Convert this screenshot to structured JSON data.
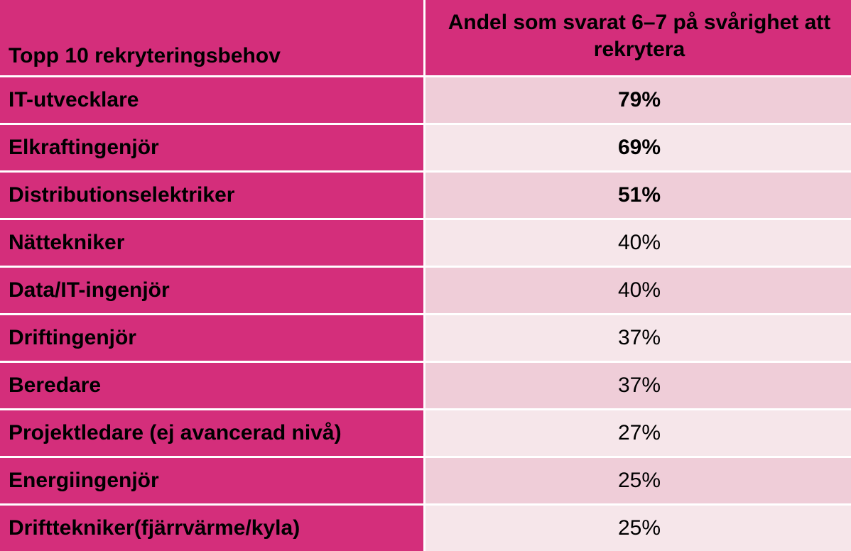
{
  "header": {
    "col1": "Topp 10 rekryteringsbehov",
    "col2": "Andel som svarat 6–7 på svårighet att rekrytera"
  },
  "rows": [
    {
      "label": "IT-utvecklare",
      "value": "79%",
      "bold": true
    },
    {
      "label": "Elkraftingenjör",
      "value": "69%",
      "bold": true
    },
    {
      "label": "Distributionselektriker",
      "value": "51%",
      "bold": true
    },
    {
      "label": "Nättekniker",
      "value": "40%",
      "bold": false
    },
    {
      "label": "Data/IT-ingenjör",
      "value": "40%",
      "bold": false
    },
    {
      "label": "Driftingenjör",
      "value": "37%",
      "bold": false
    },
    {
      "label": "Beredare",
      "value": "37%",
      "bold": false
    },
    {
      "label": "Projektledare (ej avancerad nivå)",
      "value": "27%",
      "bold": false
    },
    {
      "label": "Energiingenjör",
      "value": "25%",
      "bold": false
    },
    {
      "label": "Drifttekniker(fjärrvärme/kyla)",
      "value": "25%",
      "bold": false
    }
  ],
  "colors": {
    "header_bg": "#d42e7b",
    "row_odd_bg": "#efcdd8",
    "row_even_bg": "#f6e6ea"
  }
}
